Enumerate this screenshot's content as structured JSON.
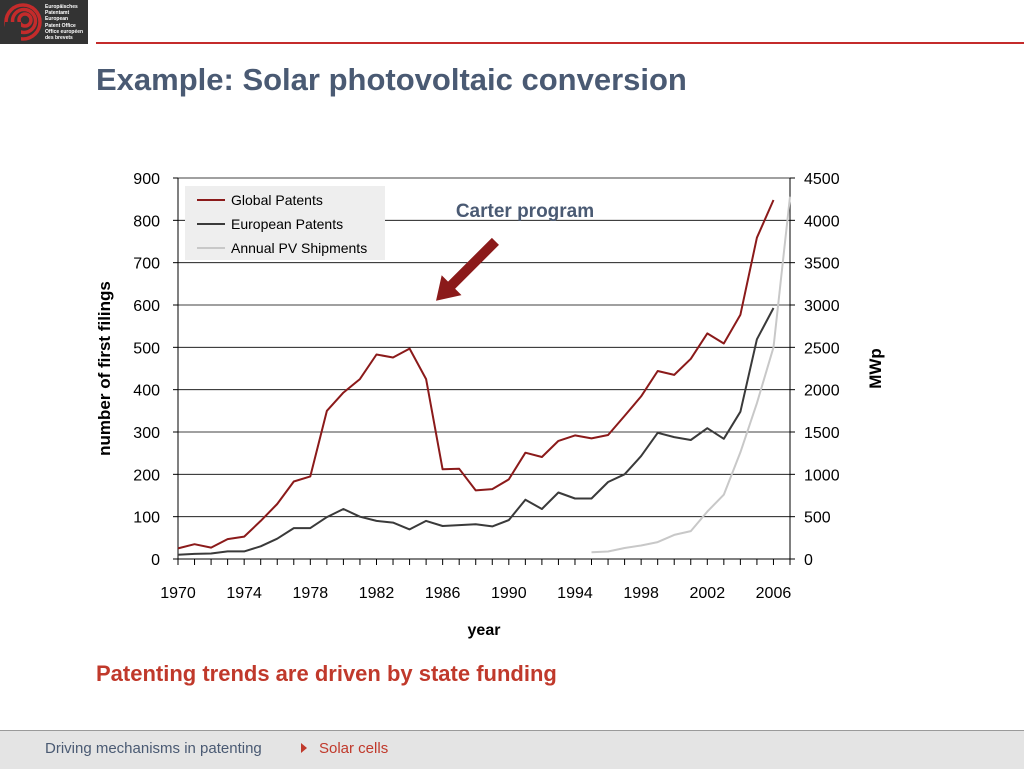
{
  "logo": {
    "lines": [
      "Europäisches",
      "Patentamt",
      "European",
      "Patent Office",
      "Office européen",
      "des brevets"
    ],
    "background": "#333333",
    "mark_color": "#c42b2b"
  },
  "title": "Example: Solar photovoltaic conversion",
  "subtitle": "Patenting trends are driven by state funding",
  "footer": {
    "crumb_1": "Driving mechanisms in patenting",
    "separator_icon": "triangle-right-icon",
    "crumb_2": "Solar cells"
  },
  "colors": {
    "title": "#4a5a73",
    "accent_red": "#c0392b",
    "global": "#8b1a1a",
    "european": "#3a3a3a",
    "pv": "#c8c8c8"
  },
  "chart_data": {
    "type": "line",
    "xlabel": "year",
    "ylabel": "number of first filings",
    "y2label": "MWp",
    "xlim": [
      1970,
      2007
    ],
    "ylim": [
      0,
      900
    ],
    "y2lim": [
      0,
      4500
    ],
    "x_ticks": [
      1970,
      1974,
      1978,
      1982,
      1986,
      1990,
      1994,
      1998,
      2002,
      2006
    ],
    "y_ticks": [
      0,
      100,
      200,
      300,
      400,
      500,
      600,
      700,
      800,
      900
    ],
    "y2_ticks": [
      0,
      500,
      1000,
      1500,
      2000,
      2500,
      3000,
      3500,
      4000,
      4500
    ],
    "grid": "horizontal",
    "legend_position": "top-left",
    "annotation": {
      "text": "Carter program",
      "arrow_target": {
        "x": 1985.6,
        "y": 610
      },
      "color": "#4a5a73",
      "arrow_color": "#8b1a1a",
      "arrow_icon": "arrow-down-left-icon"
    },
    "series": [
      {
        "name": "Global Patents",
        "axis": "left",
        "color": "#8b1a1a",
        "x": [
          1970,
          1971,
          1972,
          1973,
          1974,
          1975,
          1976,
          1977,
          1978,
          1979,
          1980,
          1981,
          1982,
          1983,
          1984,
          1985,
          1986,
          1987,
          1988,
          1989,
          1990,
          1991,
          1992,
          1993,
          1994,
          1995,
          1996,
          1997,
          1998,
          1999,
          2000,
          2001,
          2002,
          2003,
          2004,
          2005,
          2006
        ],
        "values": [
          25,
          35,
          27,
          47,
          53,
          90,
          130,
          183,
          195,
          350,
          393,
          425,
          483,
          476,
          497,
          425,
          212,
          213,
          162,
          165,
          188,
          251,
          241,
          279,
          292,
          285,
          293,
          338,
          384,
          444,
          435,
          473,
          533,
          509,
          577,
          759,
          848
        ]
      },
      {
        "name": "European Patents",
        "axis": "left",
        "color": "#3a3a3a",
        "x": [
          1970,
          1971,
          1972,
          1973,
          1974,
          1975,
          1976,
          1977,
          1978,
          1979,
          1980,
          1981,
          1982,
          1983,
          1984,
          1985,
          1986,
          1987,
          1988,
          1989,
          1990,
          1991,
          1992,
          1993,
          1994,
          1995,
          1996,
          1997,
          1998,
          1999,
          2000,
          2001,
          2002,
          2003,
          2004,
          2005,
          2006
        ],
        "values": [
          10,
          12,
          13,
          18,
          18,
          30,
          48,
          73,
          73,
          99,
          118,
          100,
          90,
          86,
          70,
          90,
          78,
          80,
          82,
          77,
          92,
          140,
          118,
          157,
          143,
          143,
          182,
          200,
          243,
          298,
          288,
          281,
          309,
          284,
          348,
          519,
          593
        ]
      },
      {
        "name": "Annual PV Shipments",
        "axis": "right",
        "color": "#c8c8c8",
        "x": [
          1995,
          1996,
          1997,
          1998,
          1999,
          2000,
          2001,
          2002,
          2003,
          2004,
          2005,
          2006,
          2007
        ],
        "values": [
          79,
          89,
          130,
          160,
          200,
          285,
          330,
          560,
          760,
          1260,
          1840,
          2500,
          4280
        ]
      }
    ]
  }
}
